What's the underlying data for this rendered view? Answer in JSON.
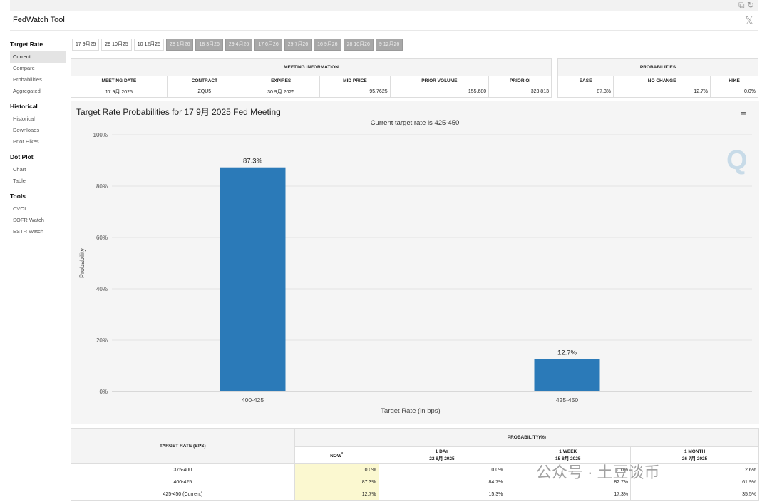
{
  "app": {
    "title": "FedWatch Tool"
  },
  "sidebar": {
    "sections": [
      {
        "heading": "Target Rate",
        "items": [
          "Current",
          "Compare",
          "Probabilities",
          "Aggregated"
        ]
      },
      {
        "heading": "Historical",
        "items": [
          "Historical",
          "Downloads",
          "Prior Hikes"
        ]
      },
      {
        "heading": "Dot Plot",
        "items": [
          "Chart",
          "Table"
        ]
      },
      {
        "heading": "Tools",
        "items": [
          "CVOL",
          "SOFR Watch",
          "ESTR Watch"
        ]
      }
    ]
  },
  "tabs": [
    "17 9月25",
    "29 10月25",
    "10 12月25",
    "28 1月26",
    "18 3月26",
    "29 4月26",
    "17 6月26",
    "29 7月26",
    "16 9月26",
    "28 10月26",
    "9 12月26"
  ],
  "meeting_info": {
    "title": "MEETING INFORMATION",
    "headers": [
      "MEETING DATE",
      "CONTRACT",
      "EXPIRES",
      "MID PRICE",
      "PRIOR VOLUME",
      "PRIOR OI"
    ],
    "row": [
      "17 9月 2025",
      "ZQU5",
      "30 9月 2025",
      "95.7625",
      "155,680",
      "323,813"
    ]
  },
  "probabilities": {
    "title": "PROBABILITIES",
    "headers": [
      "EASE",
      "NO CHANGE",
      "HIKE"
    ],
    "row": [
      "87.3%",
      "12.7%",
      "0.0%"
    ]
  },
  "chart": {
    "title": "Target Rate Probabilities for 17 9月 2025 Fed Meeting",
    "subtitle": "Current target rate is 425-450"
  },
  "chart_data": {
    "type": "bar",
    "categories": [
      "400-425",
      "425-450"
    ],
    "values": [
      87.3,
      12.7
    ],
    "data_labels": [
      "87.3%",
      "12.7%"
    ],
    "xlabel": "Target Rate (in bps)",
    "ylabel": "Probability",
    "ylim": [
      0,
      100
    ],
    "yticks": [
      "0%",
      "20%",
      "40%",
      "60%",
      "80%",
      "100%"
    ],
    "color": "#2b7ab8",
    "grid": true
  },
  "prob_table": {
    "col1_header": "TARGET RATE (BPS)",
    "title": "PROBABILITY(%)",
    "subheaders": [
      {
        "label": "NOW",
        "mark": "*",
        "date": ""
      },
      {
        "label": "1 DAY",
        "date": "22 8月 2025"
      },
      {
        "label": "1 WEEK",
        "date": "15 8月 2025"
      },
      {
        "label": "1 MONTH",
        "date": "26 7月 2025"
      }
    ],
    "rows": [
      [
        "375-400",
        "0.0%",
        "0.0%",
        "0.0%",
        "2.6%"
      ],
      [
        "400-425",
        "87.3%",
        "84.7%",
        "82.7%",
        "61.9%"
      ],
      [
        "425-450 (Current)",
        "12.7%",
        "15.3%",
        "17.3%",
        "35.5%"
      ]
    ]
  },
  "watermark": "公众号 · 土豆谈币",
  "logo_text": "Q"
}
